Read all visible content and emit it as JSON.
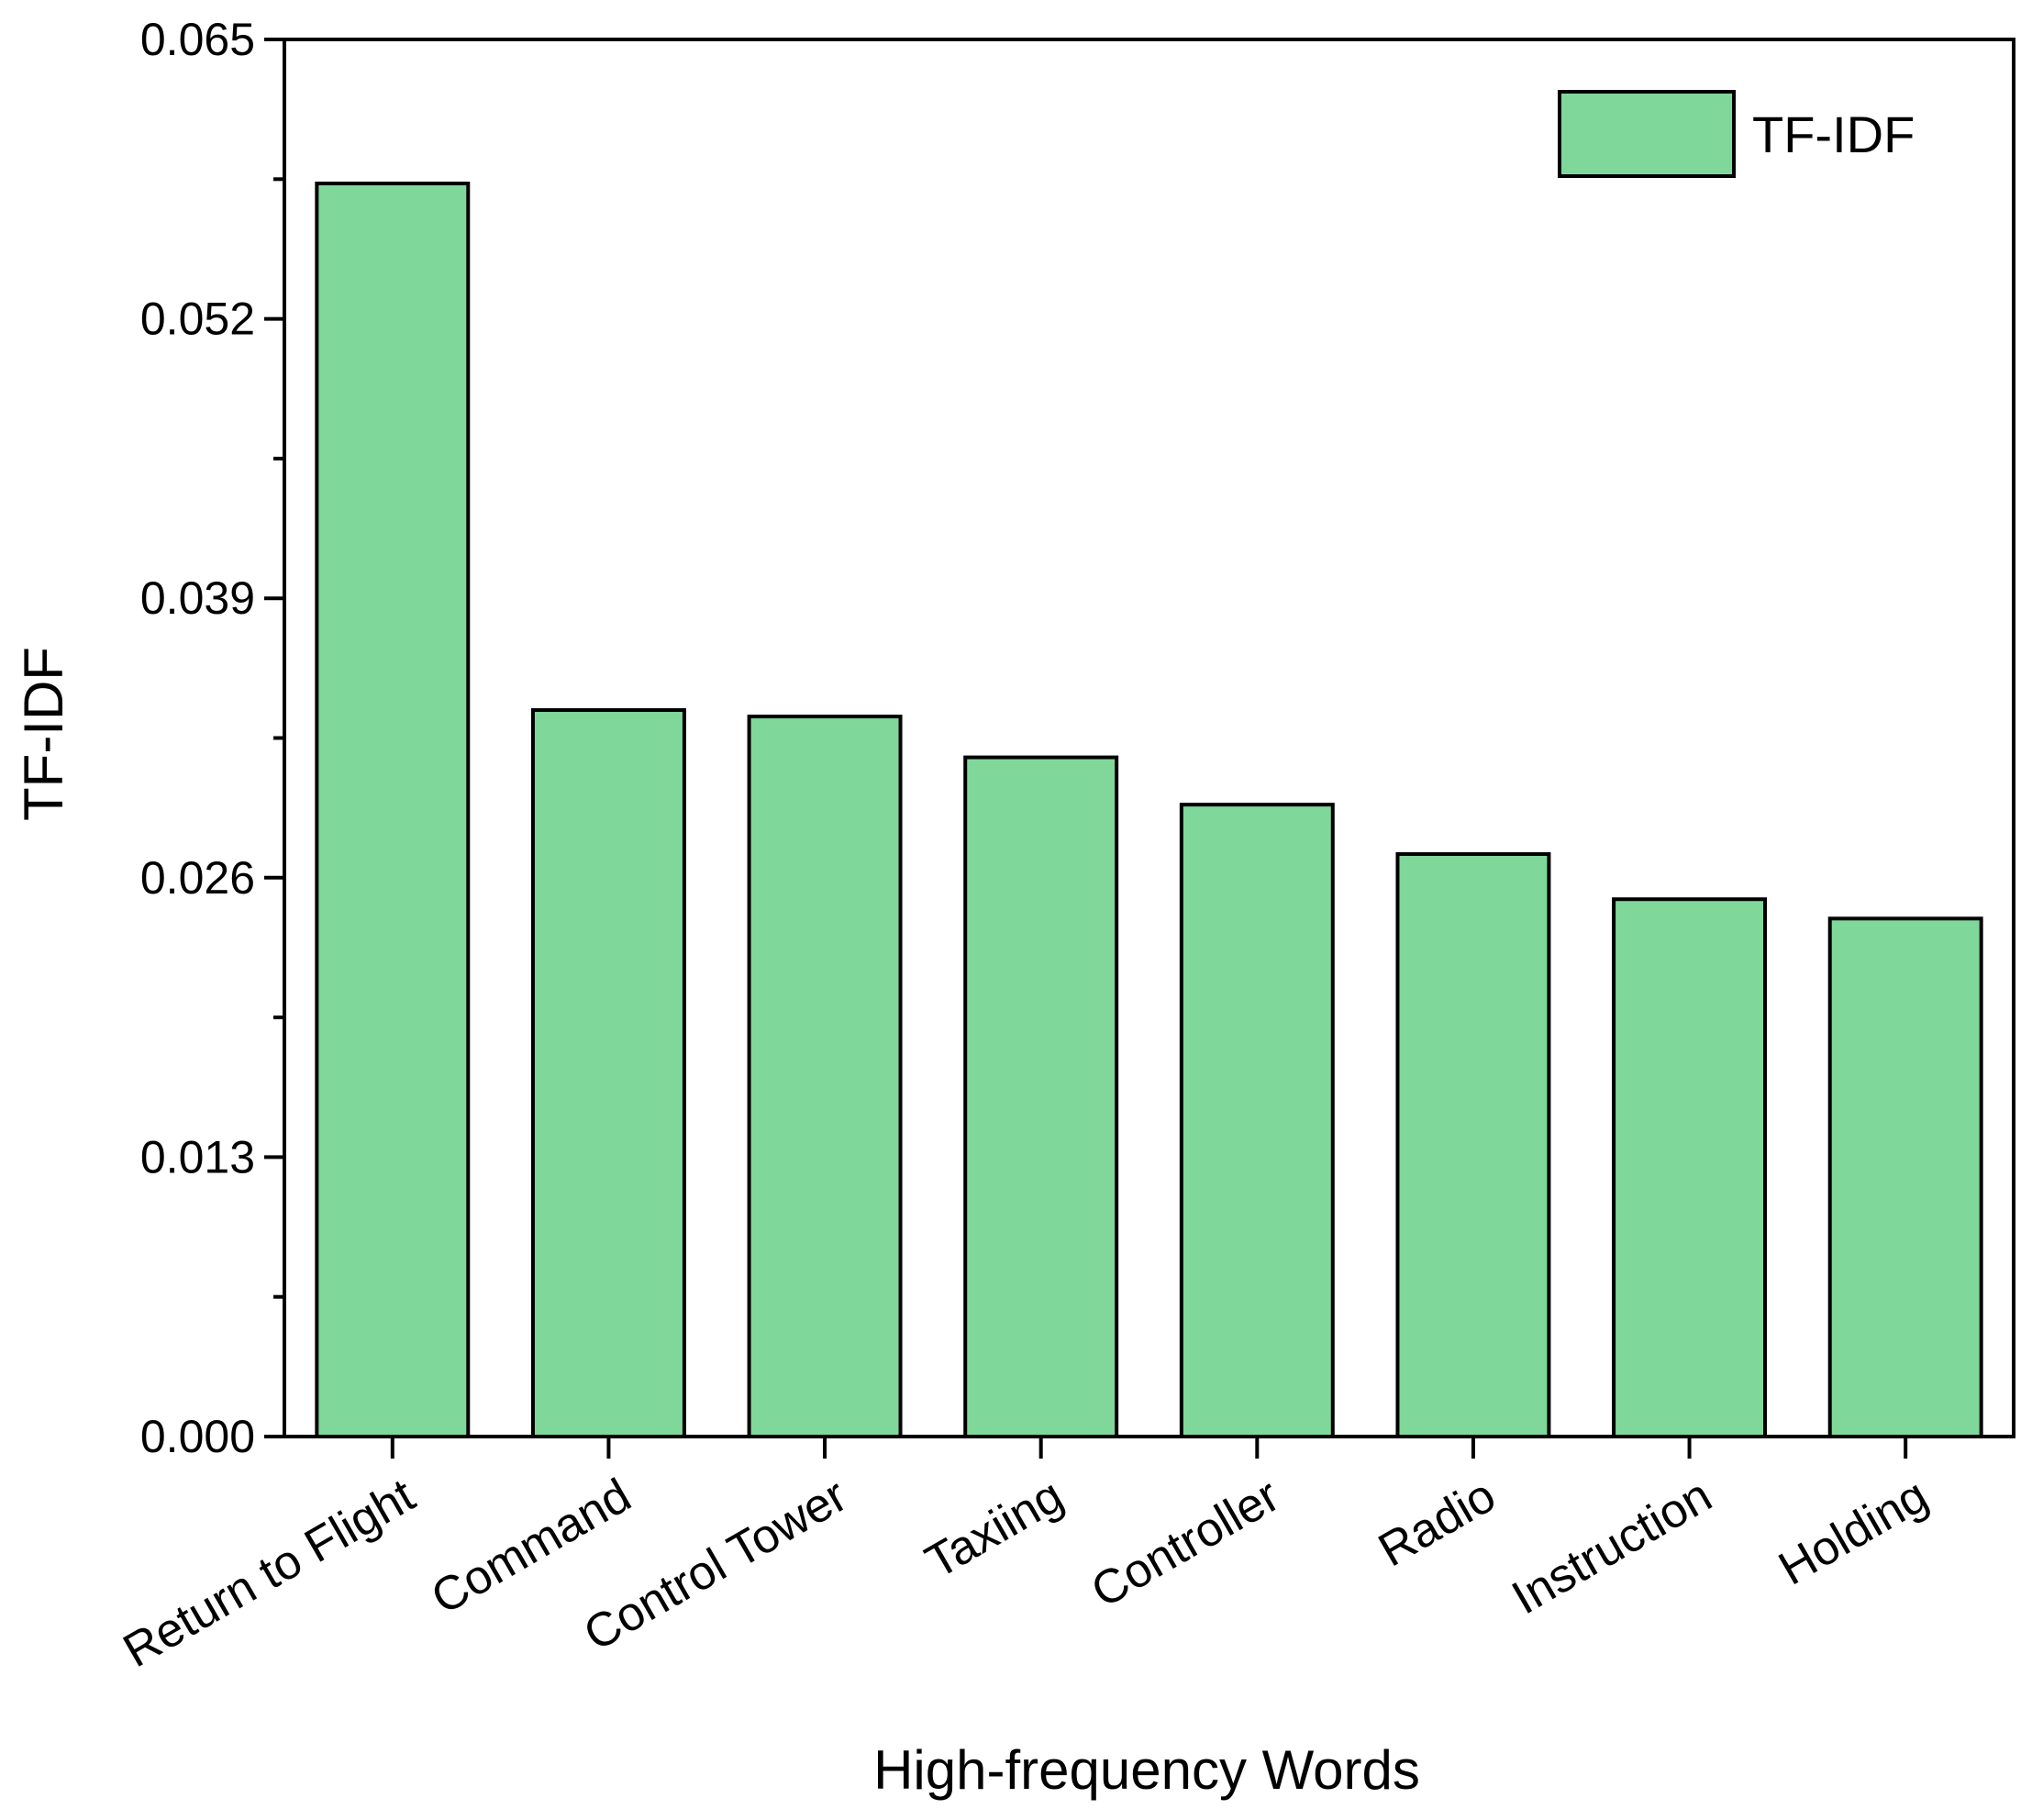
{
  "chart_data": {
    "type": "bar",
    "title": "",
    "xlabel": "High-frequency Words",
    "ylabel": "TF-IDF",
    "categories": [
      "Return to Flight",
      "Command",
      "Control Tower",
      "Taxiing",
      "Controller",
      "Radio",
      "Instruction",
      "Holding"
    ],
    "series": [
      {
        "name": "TF-IDF",
        "values": [
          0.0583,
          0.0338,
          0.0335,
          0.0316,
          0.0294,
          0.0271,
          0.025,
          0.0241
        ]
      }
    ],
    "ylim": [
      0,
      0.065
    ],
    "yticks": [
      "0.000",
      "0.013",
      "0.026",
      "0.039",
      "0.052",
      "0.065"
    ],
    "ytick_values": [
      0,
      0.013,
      0.026,
      0.039,
      0.052,
      0.065
    ],
    "grid": false,
    "legend_position": "top-right",
    "colors": {
      "bar_fill": "#7fd89a",
      "bar_stroke": "#000000",
      "axis": "#000000"
    }
  }
}
